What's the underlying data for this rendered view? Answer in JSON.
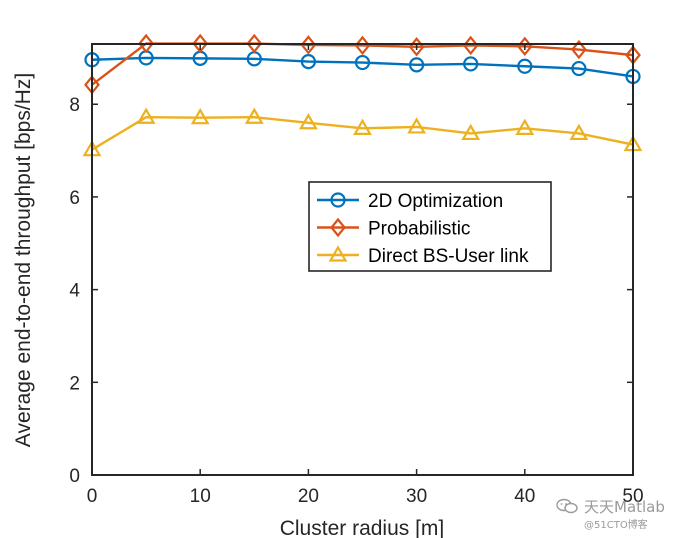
{
  "chart_data": {
    "type": "line",
    "title": "",
    "xlabel": "Cluster radius [m]",
    "ylabel": "Average end-to-end throughput [bps/Hz]",
    "xlim": [
      0,
      50
    ],
    "ylim": [
      0,
      9.3
    ],
    "xticks": [
      "0",
      "10",
      "20",
      "30",
      "40",
      "50"
    ],
    "yticks": [
      "0",
      "2",
      "4",
      "6",
      "8"
    ],
    "grid": false,
    "legend_position": "center-right",
    "x": [
      0,
      5,
      10,
      15,
      20,
      25,
      30,
      35,
      40,
      45,
      50
    ],
    "series": [
      {
        "name": "2D Optimization",
        "color": "#0072BD",
        "marker": "circle",
        "values": [
          8.96,
          9.0,
          8.99,
          8.98,
          8.92,
          8.9,
          8.85,
          8.87,
          8.82,
          8.77,
          8.6
        ]
      },
      {
        "name": "Probabilistic",
        "color": "#D95319",
        "marker": "diamond",
        "values": [
          8.42,
          9.31,
          9.31,
          9.31,
          9.28,
          9.27,
          9.24,
          9.27,
          9.25,
          9.18,
          9.06
        ]
      },
      {
        "name": "Direct BS-User link",
        "color": "#EDB120",
        "marker": "triangle",
        "values": [
          7.02,
          7.72,
          7.71,
          7.72,
          7.6,
          7.48,
          7.51,
          7.37,
          7.48,
          7.37,
          7.13
        ]
      }
    ]
  },
  "watermark": {
    "icon": "wechat-icon",
    "line1": "天天Matlab",
    "line2": "@51CTO博客"
  }
}
